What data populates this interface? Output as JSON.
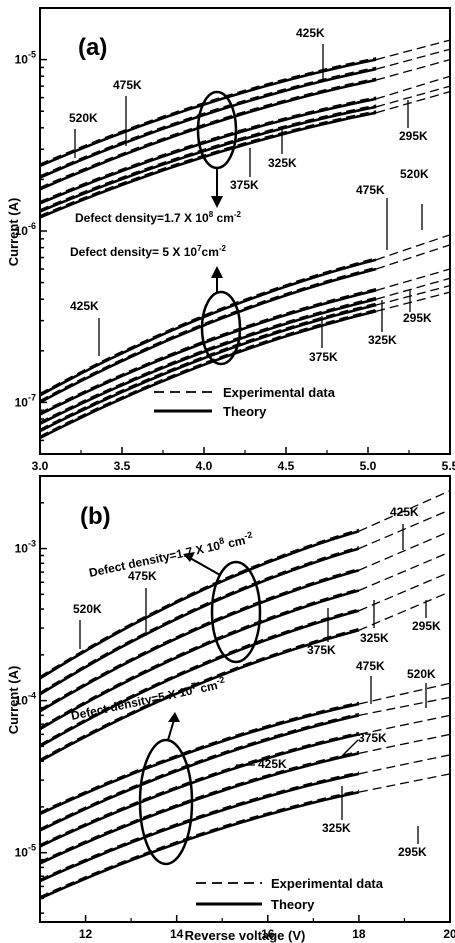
{
  "chart_data": [
    {
      "type": "line",
      "panel_label": "(a)",
      "ylabel": "Current (A)",
      "xlabel": "",
      "xlim": [
        3.0,
        5.5
      ],
      "ylim": [
        5e-08,
        2e-05
      ],
      "yscale": "log",
      "x_ticks": [
        "3.0",
        "3.5",
        "4.0",
        "4.5",
        "5.0",
        "5.5"
      ],
      "y_ticks": [
        {
          "base": "10",
          "exp": "-7",
          "value": 1e-07
        },
        {
          "base": "10",
          "exp": "-6",
          "value": 1e-06
        },
        {
          "base": "10",
          "exp": "-5",
          "value": 1e-05
        }
      ],
      "legend": {
        "experimental": "Experimental data",
        "theory": "Theory"
      },
      "annotations": {
        "defect_high": {
          "text": "Defect density=1.7 X 10",
          "sup": "8",
          "unit": " cm",
          "unit_sup": "-2"
        },
        "defect_low": {
          "text": "Defect density= 5 X 10",
          "sup": "7",
          "unit": "cm",
          "unit_sup": "-2"
        }
      },
      "temperature_labels": [
        "425K",
        "475K",
        "520K",
        "295K",
        "325K",
        "375K",
        "475K",
        "520K",
        "425K",
        "295K",
        "325K",
        "375K"
      ],
      "series": [
        {
          "group": "high",
          "temperature": "520K",
          "x": [
            3.0,
            5.05
          ],
          "y": [
            2.4e-06,
            1e-05
          ],
          "dashed_to": [
            5.5,
            1.3e-05
          ]
        },
        {
          "group": "high",
          "temperature": "475K",
          "x": [
            3.0,
            5.05
          ],
          "y": [
            2.05e-06,
            8.8e-06
          ],
          "dashed_to": [
            5.5,
            1.15e-05
          ]
        },
        {
          "group": "high",
          "temperature": "425K",
          "x": [
            3.0,
            5.05
          ],
          "y": [
            1.75e-06,
            7.6e-06
          ],
          "dashed_to": [
            5.5,
            1e-05
          ]
        },
        {
          "group": "high",
          "temperature": "375K",
          "x": [
            3.0,
            5.05
          ],
          "y": [
            1.45e-06,
            5.9e-06
          ],
          "dashed_to": [
            5.5,
            8e-06
          ]
        },
        {
          "group": "high",
          "temperature": "325K",
          "x": [
            3.0,
            5.05
          ],
          "y": [
            1.3e-06,
            5.3e-06
          ],
          "dashed_to": [
            5.5,
            7e-06
          ]
        },
        {
          "group": "high",
          "temperature": "295K",
          "x": [
            3.0,
            5.05
          ],
          "y": [
            1.2e-06,
            4.9e-06
          ],
          "dashed_to": [
            5.5,
            6.5e-06
          ]
        },
        {
          "group": "low",
          "temperature": "520K",
          "x": [
            3.0,
            5.05
          ],
          "y": [
            1.1e-07,
            6.8e-07
          ],
          "dashed_to": [
            5.5,
            9.5e-07
          ]
        },
        {
          "group": "low",
          "temperature": "475K",
          "x": [
            3.0,
            5.05
          ],
          "y": [
            1e-07,
            6e-07
          ],
          "dashed_to": [
            5.5,
            8.3e-07
          ]
        },
        {
          "group": "low",
          "temperature": "425K",
          "x": [
            3.0,
            5.05
          ],
          "y": [
            8.5e-08,
            4.5e-07
          ],
          "dashed_to": [
            5.5,
            6e-07
          ]
        },
        {
          "group": "low",
          "temperature": "375K",
          "x": [
            3.0,
            5.05
          ],
          "y": [
            7.5e-08,
            4e-07
          ],
          "dashed_to": [
            5.5,
            5.3e-07
          ]
        },
        {
          "group": "low",
          "temperature": "325K",
          "x": [
            3.0,
            5.05
          ],
          "y": [
            6.8e-08,
            3.7e-07
          ],
          "dashed_to": [
            5.5,
            4.8e-07
          ]
        },
        {
          "group": "low",
          "temperature": "295K",
          "x": [
            3.0,
            5.05
          ],
          "y": [
            6.2e-08,
            3.4e-07
          ],
          "dashed_to": [
            5.5,
            4.4e-07
          ]
        }
      ]
    },
    {
      "type": "line",
      "panel_label": "(b)",
      "ylabel": "Current (A)",
      "xlabel": "Reverse voltage (V)",
      "xlim": [
        11,
        20
      ],
      "ylim": [
        3.5e-06,
        0.003
      ],
      "yscale": "log",
      "x_ticks": [
        "12",
        "14",
        "16",
        "18",
        "20"
      ],
      "y_ticks": [
        {
          "base": "10",
          "exp": "-5",
          "value": 1e-05
        },
        {
          "base": "10",
          "exp": "-4",
          "value": 0.0001
        },
        {
          "base": "10",
          "exp": "-3",
          "value": 0.001
        }
      ],
      "legend": {
        "experimental": "Experimental data",
        "theory": "Theory"
      },
      "annotations": {
        "defect_high": {
          "text": "Defect density=1.7 X 10",
          "sup": "8",
          "unit": " cm",
          "unit_sup": "-2"
        },
        "defect_low": {
          "text": "Defect density=5 X 10",
          "sup": "7",
          "unit": " cm",
          "unit_sup": "-2"
        }
      },
      "temperature_labels": [
        "425K",
        "475K",
        "520K",
        "375K",
        "325K",
        "295K",
        "520K",
        "475K",
        "375K",
        "425K",
        "325K",
        "295K"
      ],
      "series": [
        {
          "group": "high",
          "temperature": "520K",
          "x": [
            11,
            18
          ],
          "y": [
            0.00014,
            0.0013
          ],
          "dashed_to": [
            20,
            0.0024
          ]
        },
        {
          "group": "high",
          "temperature": "475K",
          "x": [
            11,
            18
          ],
          "y": [
            0.00011,
            0.001
          ],
          "dashed_to": [
            20,
            0.0018
          ]
        },
        {
          "group": "high",
          "temperature": "425K",
          "x": [
            11,
            18
          ],
          "y": [
            8.5e-05,
            0.00072
          ],
          "dashed_to": [
            20,
            0.0013
          ]
        },
        {
          "group": "high",
          "temperature": "375K",
          "x": [
            11,
            18
          ],
          "y": [
            6.5e-05,
            0.00053
          ],
          "dashed_to": [
            20,
            0.00095
          ]
        },
        {
          "group": "high",
          "temperature": "325K",
          "x": [
            11,
            18
          ],
          "y": [
            5e-05,
            0.00039
          ],
          "dashed_to": [
            20,
            0.0007
          ]
        },
        {
          "group": "high",
          "temperature": "295K",
          "x": [
            11,
            18
          ],
          "y": [
            4e-05,
            0.00029
          ],
          "dashed_to": [
            20,
            0.00052
          ]
        },
        {
          "group": "low",
          "temperature": "520K",
          "x": [
            11,
            18
          ],
          "y": [
            1.8e-05,
            9.5e-05
          ],
          "dashed_to": [
            20,
            0.00013
          ]
        },
        {
          "group": "low",
          "temperature": "475K",
          "x": [
            11,
            18
          ],
          "y": [
            1.4e-05,
            8e-05
          ],
          "dashed_to": [
            20,
            0.000105
          ]
        },
        {
          "group": "low",
          "temperature": "425K",
          "x": [
            11,
            18
          ],
          "y": [
            1.1e-05,
            6e-05
          ],
          "dashed_to": [
            20,
            8e-05
          ]
        },
        {
          "group": "low",
          "temperature": "375K",
          "x": [
            11,
            18
          ],
          "y": [
            8.5e-06,
            4.5e-05
          ],
          "dashed_to": [
            20,
            6e-05
          ]
        },
        {
          "group": "low",
          "temperature": "325K",
          "x": [
            11,
            18
          ],
          "y": [
            6.5e-06,
            3.3e-05
          ],
          "dashed_to": [
            20,
            4.4e-05
          ]
        },
        {
          "group": "low",
          "temperature": "295K",
          "x": [
            11,
            18
          ],
          "y": [
            5e-06,
            2.5e-05
          ],
          "dashed_to": [
            20,
            3.3e-05
          ]
        }
      ]
    }
  ]
}
